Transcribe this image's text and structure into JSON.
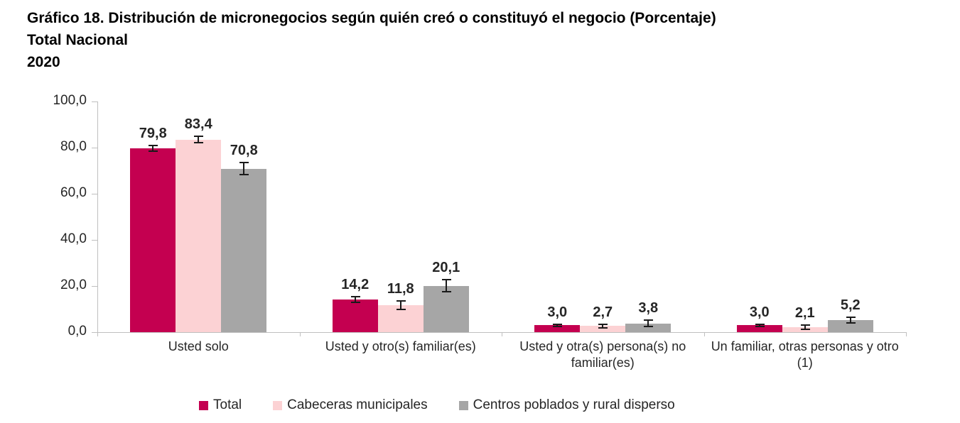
{
  "header": {
    "title": "Gráfico 18. Distribución de micronegocios según quién creó o constituyó el negocio (Porcentaje)",
    "subtitle": "Total Nacional",
    "year": "2020"
  },
  "colors": {
    "axis": "#BFBFBF",
    "text": "#262626",
    "error_bar": "#1A1A1A",
    "background": "#FFFFFF",
    "accent_total": "#C40050",
    "accent_cabeceras": "#FCD2D4",
    "accent_centros": "#A6A6A6"
  },
  "chart_data": {
    "type": "bar",
    "title": "Gráfico 18. Distribución de micronegocios según quién creó o constituyó el negocio (Porcentaje)",
    "subtitle": "Total Nacional",
    "year": "2020",
    "categories": [
      "Usted solo",
      "Usted y otro(s) familiar(es)",
      "Usted y otra(s) persona(s) no familiar(es)",
      "Un familiar, otras personas y otro (1)"
    ],
    "series": [
      {
        "name": "Total",
        "color": "#C40050",
        "values": [
          79.8,
          14.2,
          3.0,
          3.0
        ],
        "errors": [
          1.5,
          1.5,
          0.7,
          0.7
        ]
      },
      {
        "name": "Cabeceras municipales",
        "color": "#FCD2D4",
        "values": [
          83.4,
          11.8,
          2.7,
          2.1
        ],
        "errors": [
          1.7,
          2.2,
          1.1,
          1.2
        ]
      },
      {
        "name": "Centros poblados y rural disperso",
        "color": "#A6A6A6",
        "values": [
          70.8,
          20.1,
          3.8,
          5.2
        ],
        "errors": [
          2.9,
          3.0,
          1.6,
          1.5
        ]
      }
    ],
    "xlabel": "",
    "ylabel": "",
    "ylim": [
      0,
      100
    ],
    "y_ticks": [
      {
        "value": 0,
        "label": "0,0"
      },
      {
        "value": 20,
        "label": "20,0"
      },
      {
        "value": 40,
        "label": "40,0"
      },
      {
        "value": 60,
        "label": "60,0"
      },
      {
        "value": 80,
        "label": "80,0"
      },
      {
        "value": 100,
        "label": "100,0"
      }
    ],
    "grid": false,
    "value_labels": true,
    "error_bars": true,
    "legend_position": "bottom",
    "decimal_separator": ","
  }
}
